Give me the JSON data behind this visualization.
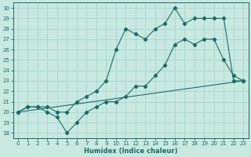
{
  "xlabel": "Humidex (Indice chaleur)",
  "bg_color": "#c8e8e0",
  "line_color": "#1a6b6b",
  "grid_color": "#a8d8d0",
  "xlim": [
    -0.5,
    23.5
  ],
  "ylim": [
    17.5,
    30.5
  ],
  "xticks": [
    0,
    1,
    2,
    3,
    4,
    5,
    6,
    7,
    8,
    9,
    10,
    11,
    12,
    13,
    14,
    15,
    16,
    17,
    18,
    19,
    20,
    21,
    22,
    23
  ],
  "yticks": [
    18,
    19,
    20,
    21,
    22,
    23,
    24,
    25,
    26,
    27,
    28,
    29,
    30
  ],
  "series_upper": {
    "x": [
      0,
      1,
      2,
      3,
      4,
      5,
      6,
      7,
      8,
      9,
      10,
      11,
      12,
      13,
      14,
      15,
      16,
      17,
      18,
      19,
      20,
      21,
      22,
      23
    ],
    "y": [
      20,
      20.5,
      20.5,
      20.5,
      20,
      20,
      21,
      21.5,
      22,
      23,
      26,
      28,
      27.5,
      27,
      28,
      28.5,
      30,
      28.5,
      29,
      29,
      29,
      29,
      23,
      23
    ]
  },
  "series_lower": {
    "x": [
      0,
      1,
      2,
      3,
      4,
      5,
      6,
      7,
      8,
      9,
      10,
      11,
      12,
      13,
      14,
      15,
      16,
      17,
      18,
      19,
      20,
      21,
      22,
      23
    ],
    "y": [
      20,
      20.5,
      20.5,
      20,
      19.5,
      18,
      19,
      20,
      20.5,
      21,
      21,
      21.5,
      22.5,
      22.5,
      23.5,
      24.5,
      26.5,
      27,
      26.5,
      27,
      27,
      25,
      23.5,
      23
    ]
  },
  "series_line": {
    "x": [
      0,
      23
    ],
    "y": [
      20,
      23
    ]
  }
}
